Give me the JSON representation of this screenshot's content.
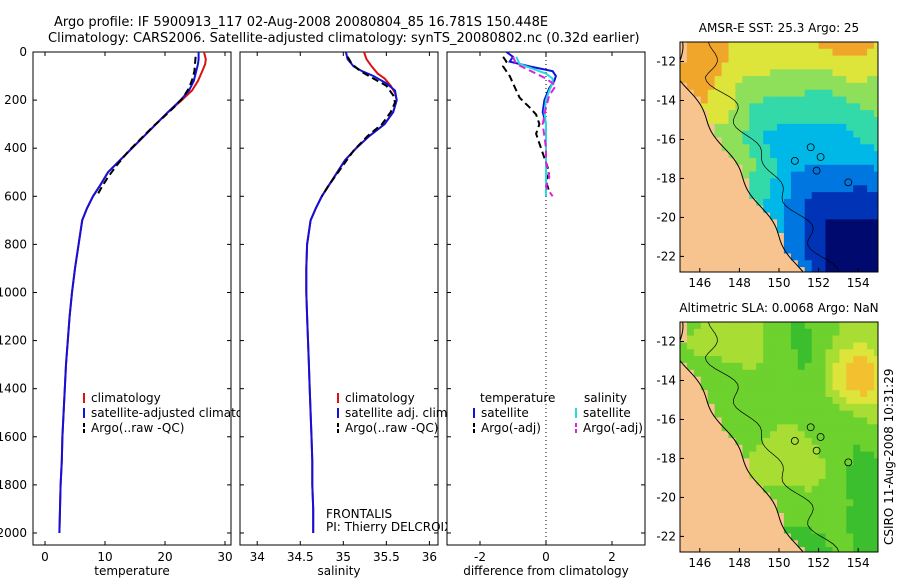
{
  "header": {
    "line1": "Argo profile: IF 5900913_117 02-Aug-2008 20080804_85 16.781S 150.448E",
    "line2": "Climatology: CARS2006. Satellite-adjusted climatology: synTS_20080802.nc (0.32d earlier)"
  },
  "side_label": "CSIRO 11-Aug-2008 10:31:29",
  "chart_data": [
    {
      "id": "temperature",
      "type": "line",
      "xlabel": "temperature",
      "ylabel": "",
      "xlim": [
        -2,
        31
      ],
      "ylim": [
        2050,
        0
      ],
      "xticks": [
        0,
        10,
        20,
        30
      ],
      "yticks": [
        0,
        200,
        400,
        600,
        800,
        1000,
        1200,
        1400,
        1600,
        1800,
        2000
      ],
      "legend": [
        "climatology",
        "satellite-adjusted climatology",
        "Argo(..raw -QC)"
      ],
      "series": [
        {
          "name": "climatology",
          "color": "#dd1111",
          "dash": false,
          "points": [
            [
              26.5,
              0
            ],
            [
              26.8,
              30
            ],
            [
              26.7,
              50
            ],
            [
              26.2,
              80
            ],
            [
              25.5,
              120
            ],
            [
              24.5,
              160
            ],
            [
              22.8,
              200
            ],
            [
              20.5,
              250
            ],
            [
              18.5,
              300
            ],
            [
              16.5,
              350
            ],
            [
              14.5,
              400
            ],
            [
              12.5,
              450
            ],
            [
              10.5,
              500
            ],
            [
              9.3,
              550
            ],
            [
              8.0,
              600
            ],
            [
              7.0,
              650
            ],
            [
              6.2,
              700
            ],
            [
              5.6,
              800
            ],
            [
              5.0,
              900
            ],
            [
              4.5,
              1000
            ],
            [
              4.1,
              1100
            ],
            [
              3.8,
              1200
            ],
            [
              3.5,
              1300
            ],
            [
              3.3,
              1400
            ],
            [
              3.1,
              1500
            ],
            [
              2.9,
              1600
            ],
            [
              2.8,
              1700
            ],
            [
              2.6,
              1800
            ],
            [
              2.5,
              1900
            ],
            [
              2.4,
              2000
            ]
          ]
        },
        {
          "name": "satellite-adjusted climatology",
          "color": "#1111dd",
          "dash": false,
          "points": [
            [
              25.6,
              0
            ],
            [
              25.6,
              30
            ],
            [
              25.5,
              50
            ],
            [
              25.2,
              80
            ],
            [
              24.8,
              120
            ],
            [
              24.0,
              160
            ],
            [
              22.6,
              200
            ],
            [
              20.5,
              250
            ],
            [
              18.5,
              300
            ],
            [
              16.5,
              350
            ],
            [
              14.5,
              400
            ],
            [
              12.5,
              450
            ],
            [
              10.5,
              500
            ],
            [
              9.3,
              550
            ],
            [
              8.0,
              600
            ],
            [
              7.0,
              650
            ],
            [
              6.2,
              700
            ],
            [
              5.6,
              800
            ],
            [
              5.0,
              900
            ],
            [
              4.5,
              1000
            ],
            [
              4.1,
              1100
            ],
            [
              3.8,
              1200
            ],
            [
              3.5,
              1300
            ],
            [
              3.3,
              1400
            ],
            [
              3.1,
              1500
            ],
            [
              2.9,
              1600
            ],
            [
              2.8,
              1700
            ],
            [
              2.6,
              1800
            ],
            [
              2.5,
              1900
            ],
            [
              2.4,
              2000
            ]
          ]
        },
        {
          "name": "Argo(..raw -QC)",
          "color": "#000000",
          "dash": true,
          "points": [
            [
              25.1,
              20
            ],
            [
              25.0,
              50
            ],
            [
              24.9,
              80
            ],
            [
              24.6,
              110
            ],
            [
              24.0,
              150
            ],
            [
              23.0,
              190
            ],
            [
              21.5,
              230
            ],
            [
              19.8,
              270
            ],
            [
              18.0,
              310
            ],
            [
              16.0,
              360
            ],
            [
              14.0,
              410
            ],
            [
              12.0,
              470
            ],
            [
              10.5,
              520
            ],
            [
              9.5,
              560
            ],
            [
              8.6,
              600
            ]
          ]
        }
      ]
    },
    {
      "id": "salinity",
      "type": "line",
      "xlabel": "salinity",
      "ylabel": "",
      "xlim": [
        33.8,
        36.1
      ],
      "ylim": [
        2050,
        0
      ],
      "xticks": [
        34,
        34.5,
        35,
        35.5,
        36
      ],
      "legend": [
        "climatology",
        "satellite adj. clim.",
        "Argo(..raw -QC)"
      ],
      "annotation": [
        "FRONTALIS",
        "PI: Thierry DELCROIX"
      ],
      "series": [
        {
          "name": "climatology",
          "color": "#dd1111",
          "dash": false,
          "points": [
            [
              35.24,
              0
            ],
            [
              35.27,
              30
            ],
            [
              35.33,
              60
            ],
            [
              35.4,
              90
            ],
            [
              35.48,
              110
            ],
            [
              35.55,
              140
            ],
            [
              35.6,
              170
            ],
            [
              35.62,
              200
            ],
            [
              35.58,
              250
            ],
            [
              35.48,
              300
            ],
            [
              35.3,
              350
            ],
            [
              35.15,
              400
            ],
            [
              35.02,
              450
            ],
            [
              34.93,
              500
            ],
            [
              34.84,
              550
            ],
            [
              34.75,
              600
            ],
            [
              34.68,
              650
            ],
            [
              34.62,
              700
            ],
            [
              34.58,
              800
            ],
            [
              34.57,
              900
            ],
            [
              34.57,
              1000
            ],
            [
              34.58,
              1100
            ],
            [
              34.59,
              1200
            ],
            [
              34.6,
              1300
            ],
            [
              34.61,
              1400
            ],
            [
              34.62,
              1500
            ],
            [
              34.63,
              1600
            ],
            [
              34.64,
              1700
            ],
            [
              34.64,
              1800
            ],
            [
              34.65,
              1900
            ],
            [
              34.65,
              2000
            ]
          ]
        },
        {
          "name": "satellite adj. clim.",
          "color": "#1111dd",
          "dash": false,
          "points": [
            [
              35.03,
              0
            ],
            [
              35.05,
              30
            ],
            [
              35.12,
              60
            ],
            [
              35.22,
              80
            ],
            [
              35.35,
              100
            ],
            [
              35.5,
              130
            ],
            [
              35.6,
              160
            ],
            [
              35.62,
              200
            ],
            [
              35.58,
              250
            ],
            [
              35.48,
              300
            ],
            [
              35.3,
              350
            ],
            [
              35.15,
              400
            ],
            [
              35.02,
              450
            ],
            [
              34.93,
              500
            ],
            [
              34.84,
              550
            ],
            [
              34.75,
              600
            ],
            [
              34.68,
              650
            ],
            [
              34.62,
              700
            ],
            [
              34.58,
              800
            ],
            [
              34.57,
              900
            ],
            [
              34.57,
              1000
            ],
            [
              34.58,
              1100
            ],
            [
              34.59,
              1200
            ],
            [
              34.6,
              1300
            ],
            [
              34.61,
              1400
            ],
            [
              34.62,
              1500
            ],
            [
              34.63,
              1600
            ],
            [
              34.64,
              1700
            ],
            [
              34.64,
              1800
            ],
            [
              34.65,
              1900
            ],
            [
              34.65,
              2000
            ]
          ]
        },
        {
          "name": "Argo(..raw -QC)",
          "color": "#000000",
          "dash": true,
          "points": [
            [
              35.05,
              20
            ],
            [
              35.1,
              50
            ],
            [
              35.2,
              80
            ],
            [
              35.35,
              110
            ],
            [
              35.5,
              140
            ],
            [
              35.58,
              180
            ],
            [
              35.6,
              210
            ],
            [
              35.55,
              250
            ],
            [
              35.45,
              300
            ],
            [
              35.28,
              350
            ],
            [
              35.12,
              410
            ],
            [
              35.0,
              470
            ],
            [
              34.9,
              520
            ],
            [
              34.82,
              560
            ],
            [
              34.75,
              600
            ]
          ]
        }
      ]
    },
    {
      "id": "difference",
      "type": "line",
      "xlabel": "difference from climatology",
      "ylabel": "",
      "xlim": [
        -3,
        3
      ],
      "ylim": [
        2050,
        0
      ],
      "xticks": [
        -2,
        0,
        2
      ],
      "reference_line_x": 0,
      "legend": {
        "temperature": {
          "heading": "temperature",
          "items": [
            "satellite",
            "Argo(-adj)"
          ]
        },
        "salinity": {
          "heading": "salinity",
          "items": [
            "satellite",
            "Argo(-adj)"
          ]
        }
      },
      "series": [
        {
          "name": "temperature satellite",
          "color": "#1111dd",
          "dash": false,
          "points": [
            [
              -1.2,
              0
            ],
            [
              -1.0,
              20
            ],
            [
              -1.1,
              40
            ],
            [
              -0.5,
              60
            ],
            [
              0.2,
              80
            ],
            [
              0.3,
              100
            ],
            [
              0.25,
              120
            ],
            [
              0.1,
              150
            ],
            [
              -0.05,
              200
            ],
            [
              -0.1,
              250
            ],
            [
              0.0,
              300
            ],
            [
              0.0,
              400
            ],
            [
              0.0,
              500
            ],
            [
              0.0,
              600
            ]
          ]
        },
        {
          "name": "temperature Argo(-adj)",
          "color": "#000000",
          "dash": true,
          "points": [
            [
              -1.3,
              20
            ],
            [
              -1.2,
              40
            ],
            [
              -1.3,
              60
            ],
            [
              -1.1,
              100
            ],
            [
              -1.0,
              130
            ],
            [
              -0.9,
              160
            ],
            [
              -0.8,
              190
            ],
            [
              -0.5,
              230
            ],
            [
              -0.3,
              260
            ],
            [
              -0.2,
              300
            ],
            [
              -0.3,
              340
            ],
            [
              -0.2,
              380
            ],
            [
              -0.1,
              420
            ],
            [
              0.0,
              460
            ],
            [
              0.1,
              500
            ],
            [
              0.0,
              540
            ],
            [
              0.1,
              580
            ]
          ]
        },
        {
          "name": "salinity satellite",
          "color": "#22dddd",
          "dash": false,
          "points": [
            [
              -0.9,
              20
            ],
            [
              -0.8,
              50
            ],
            [
              -0.4,
              70
            ],
            [
              0.0,
              90
            ],
            [
              0.2,
              110
            ],
            [
              0.2,
              130
            ],
            [
              0.1,
              160
            ],
            [
              0.0,
              200
            ],
            [
              -0.05,
              250
            ],
            [
              0.0,
              300
            ],
            [
              0.0,
              400
            ],
            [
              0.0,
              500
            ],
            [
              0.0,
              600
            ]
          ]
        },
        {
          "name": "salinity Argo(-adj)",
          "color": "#dd22dd",
          "dash": true,
          "points": [
            [
              -1.0,
              20
            ],
            [
              -0.9,
              50
            ],
            [
              -0.6,
              70
            ],
            [
              -0.3,
              90
            ],
            [
              0.0,
              110
            ],
            [
              0.3,
              140
            ],
            [
              0.1,
              180
            ],
            [
              0.0,
              230
            ],
            [
              -0.1,
              300
            ],
            [
              0.0,
              400
            ],
            [
              0.0,
              460
            ],
            [
              0.1,
              520
            ],
            [
              0.0,
              560
            ],
            [
              0.2,
              600
            ]
          ]
        }
      ]
    },
    {
      "id": "sst_map",
      "type": "heatmap",
      "title": "AMSR-E SST: 25.3 Argo: 25",
      "xlim": [
        145,
        155
      ],
      "ylim": [
        -22.8,
        -11
      ],
      "xticks": [
        146,
        148,
        150,
        152,
        154
      ],
      "yticks": [
        -12,
        -14,
        -16,
        -18,
        -20,
        -22
      ],
      "colormap": [
        "#000a6e",
        "#0033b5",
        "#0077e0",
        "#00b8e8",
        "#33d9a8",
        "#8ee05a",
        "#dde43a",
        "#f0a62a"
      ]
    },
    {
      "id": "sla_map",
      "type": "heatmap",
      "title": "Altimetric SLA: 0.0068 Argo: NaN",
      "xlim": [
        145,
        155
      ],
      "ylim": [
        -22.8,
        -11
      ],
      "xticks": [
        146,
        148,
        150,
        152,
        154
      ],
      "yticks": [
        -12,
        -14,
        -16,
        -18,
        -20,
        -22
      ],
      "colormap": [
        "#1aa82b",
        "#3cbf2e",
        "#6dd12e",
        "#a8dd34",
        "#dde43a",
        "#f3c030",
        "#f09a28"
      ]
    }
  ]
}
